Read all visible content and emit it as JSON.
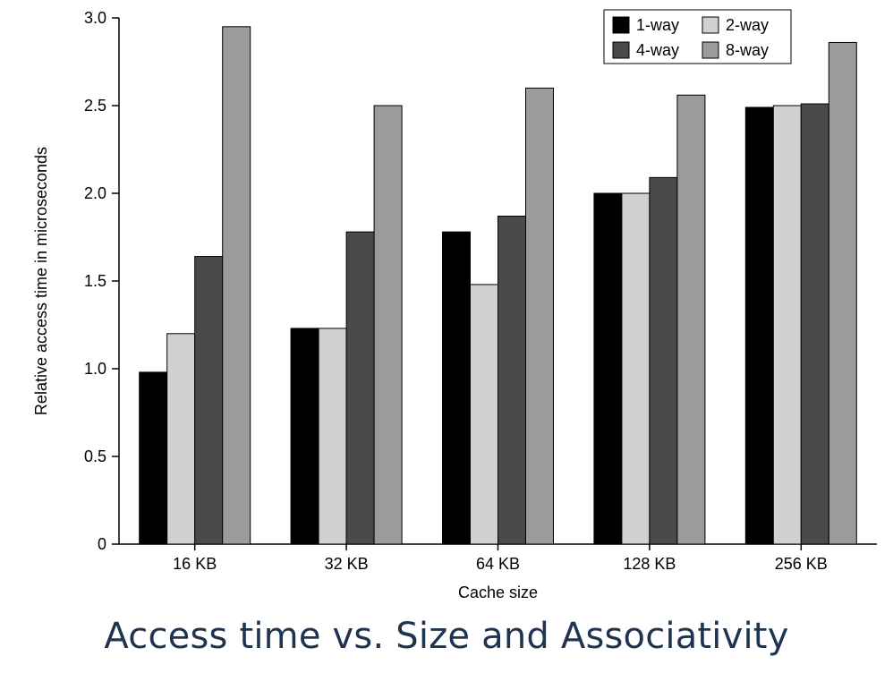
{
  "slide": {
    "title": "Access time vs. Size and Associativity"
  },
  "chart_data": {
    "type": "bar",
    "title": "",
    "xlabel": "Cache size",
    "ylabel": "Relative access time in microseconds",
    "categories": [
      "16 KB",
      "32 KB",
      "64 KB",
      "128 KB",
      "256 KB"
    ],
    "series": [
      {
        "name": "1-way",
        "color": "#000000",
        "values": [
          0.98,
          1.23,
          1.78,
          2.0,
          2.49
        ]
      },
      {
        "name": "2-way",
        "color": "#d0d0d0",
        "values": [
          1.2,
          1.23,
          1.48,
          2.0,
          2.5
        ]
      },
      {
        "name": "4-way",
        "color": "#4a4a4a",
        "values": [
          1.64,
          1.78,
          1.87,
          2.09,
          2.51
        ]
      },
      {
        "name": "8-way",
        "color": "#9b9b9b",
        "values": [
          2.95,
          2.5,
          2.6,
          2.56,
          2.86
        ]
      }
    ],
    "yticks": [
      "0",
      "0.5",
      "1.0",
      "1.5",
      "2.0",
      "2.5",
      "3.0"
    ],
    "ylim": [
      0,
      3.0
    ],
    "legend_position": "top-right",
    "grid": false
  }
}
